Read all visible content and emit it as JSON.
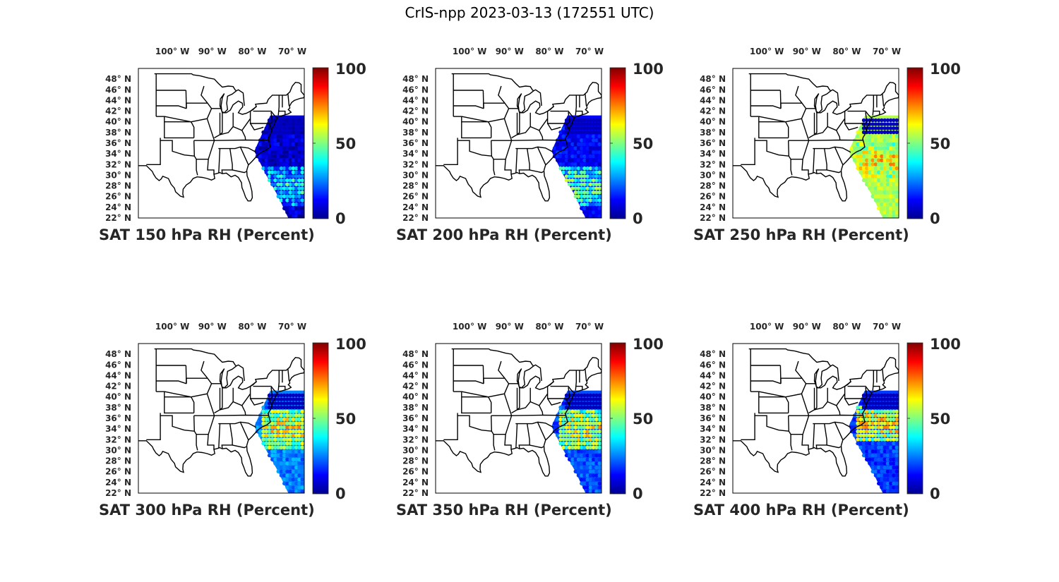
{
  "figure": {
    "title": "CrIS-npp 2023-03-13 (172551 UTC)"
  },
  "map": {
    "lon_ticks": [
      "100° W",
      "90° W",
      "80° W",
      "70° W"
    ],
    "lat_ticks": [
      "48° N",
      "46° N",
      "44° N",
      "42° N",
      "40° N",
      "38° N",
      "36° N",
      "34° N",
      "32° N",
      "30° N",
      "28° N",
      "26° N",
      "24° N",
      "22° N"
    ],
    "lon_values": [
      -100,
      -90,
      -80,
      -70
    ],
    "lat_values": [
      48,
      46,
      44,
      42,
      40,
      38,
      36,
      34,
      32,
      30,
      28,
      26,
      24,
      22
    ],
    "lon_range": [
      -108.5,
      -67
    ],
    "lat_range": [
      22,
      50
    ],
    "colormap": "jet",
    "colorbar_ticks": [
      "100",
      "50",
      "0"
    ],
    "colorbar_range": [
      0,
      100
    ]
  },
  "panels": [
    {
      "caption": "SAT 150 hPa RH (Percent)",
      "level_hpa": 150,
      "typical_rh": 8,
      "band_rh": 35,
      "band_lat": 28
    },
    {
      "caption": "SAT 200 hPa RH (Percent)",
      "level_hpa": 200,
      "typical_rh": 12,
      "band_rh": 45,
      "band_lat": 28
    },
    {
      "caption": "SAT 250 hPa RH (Percent)",
      "level_hpa": 250,
      "typical_rh": 55,
      "band_rh": 62,
      "band_lat": 33
    },
    {
      "caption": "SAT 300 hPa RH (Percent)",
      "level_hpa": 300,
      "typical_rh": 25,
      "band_rh": 60,
      "band_lat": 34
    },
    {
      "caption": "SAT 350 hPa RH (Percent)",
      "level_hpa": 350,
      "typical_rh": 20,
      "band_rh": 58,
      "band_lat": 34
    },
    {
      "caption": "SAT 400 hPa RH (Percent)",
      "level_hpa": 400,
      "typical_rh": 18,
      "band_rh": 62,
      "band_lat": 35
    }
  ]
}
